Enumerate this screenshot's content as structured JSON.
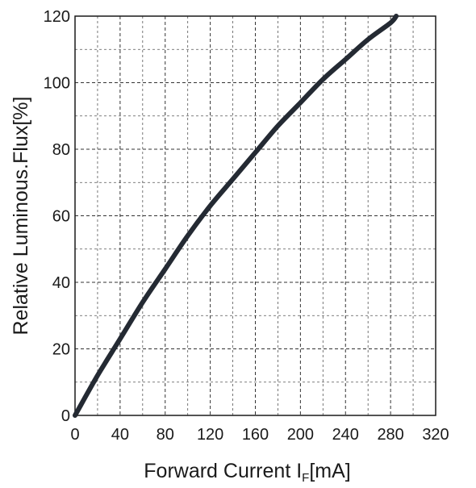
{
  "chart_data": {
    "type": "line",
    "title": "",
    "xlabel": {
      "main": "Forward Current I",
      "subscript": "F",
      "unit": "[mA]"
    },
    "ylabel": "Relative Luminous.Flux[%]",
    "xlim": [
      0,
      320
    ],
    "ylim": [
      0,
      120
    ],
    "x_ticks": [
      0,
      40,
      80,
      120,
      160,
      200,
      240,
      280,
      320
    ],
    "y_ticks": [
      0,
      20,
      40,
      60,
      80,
      100,
      120
    ],
    "x_minor_step": 20,
    "y_minor_step": 10,
    "grid": true,
    "grid_style": "dashed",
    "series": [
      {
        "color": "#242a33",
        "x": [
          0,
          20,
          40,
          60,
          80,
          100,
          120,
          140,
          160,
          180,
          200,
          220,
          240,
          260,
          280,
          285
        ],
        "y": [
          0,
          12,
          23,
          34,
          44,
          54,
          63,
          71,
          79,
          87,
          94,
          101,
          107,
          113,
          118,
          120
        ]
      }
    ]
  }
}
